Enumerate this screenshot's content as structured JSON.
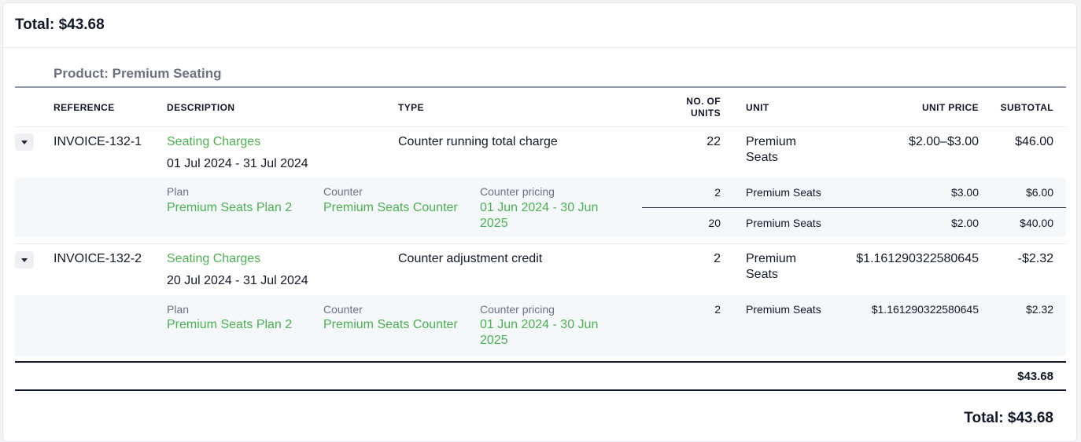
{
  "header": {
    "total": "Total: $43.68"
  },
  "product": {
    "title": "Product: Premium Seating"
  },
  "columns": {
    "reference": "REFERENCE",
    "description": "DESCRIPTION",
    "type": "TYPE",
    "units_line1": "NO. OF",
    "units_line2": "UNITS",
    "unit": "UNIT",
    "unit_price": "UNIT PRICE",
    "subtotal": "SUBTOTAL"
  },
  "lines": [
    {
      "reference": "INVOICE-132-1",
      "description": "Seating Charges",
      "period": "01 Jul 2024 - 31 Jul 2024",
      "type": "Counter running total charge",
      "units": "22",
      "unit_line1": "Premium",
      "unit_line2": "Seats",
      "unit_price": "$2.00–$3.00",
      "subtotal": "$46.00",
      "detail": {
        "plan_label": "Plan",
        "plan": "Premium Seats Plan 2",
        "counter_label": "Counter",
        "counter": "Premium Seats Counter",
        "pricing_label": "Counter pricing",
        "pricing_line1": "01 Jun 2024 - 30 Jun",
        "pricing_line2": "2025",
        "tiers": [
          {
            "units": "2",
            "unit": "Premium Seats",
            "unit_price": "$3.00",
            "subtotal": "$6.00"
          },
          {
            "units": "20",
            "unit": "Premium Seats",
            "unit_price": "$2.00",
            "subtotal": "$40.00"
          }
        ]
      }
    },
    {
      "reference": "INVOICE-132-2",
      "description": "Seating Charges",
      "period": "20 Jul 2024 - 31 Jul 2024",
      "type": "Counter adjustment credit",
      "units": "2",
      "unit_line1": "Premium",
      "unit_line2": "Seats",
      "unit_price": "$1.161290322580645",
      "subtotal": "-$2.32",
      "detail": {
        "plan_label": "Plan",
        "plan": "Premium Seats Plan 2",
        "counter_label": "Counter",
        "counter": "Premium Seats Counter",
        "pricing_label": "Counter pricing",
        "pricing_line1": "01 Jun 2024 - 30 Jun",
        "pricing_line2": "2025",
        "tiers": [
          {
            "units": "2",
            "unit": "Premium Seats",
            "unit_price": "$1.161290322580645",
            "subtotal": "$2.32"
          }
        ]
      }
    }
  ],
  "product_total": "$43.68",
  "footer": {
    "total": "Total: $43.68"
  },
  "colors": {
    "accent_green": "#4caf50",
    "muted": "#6b7280",
    "detail_bg": "#f5f8fa"
  }
}
